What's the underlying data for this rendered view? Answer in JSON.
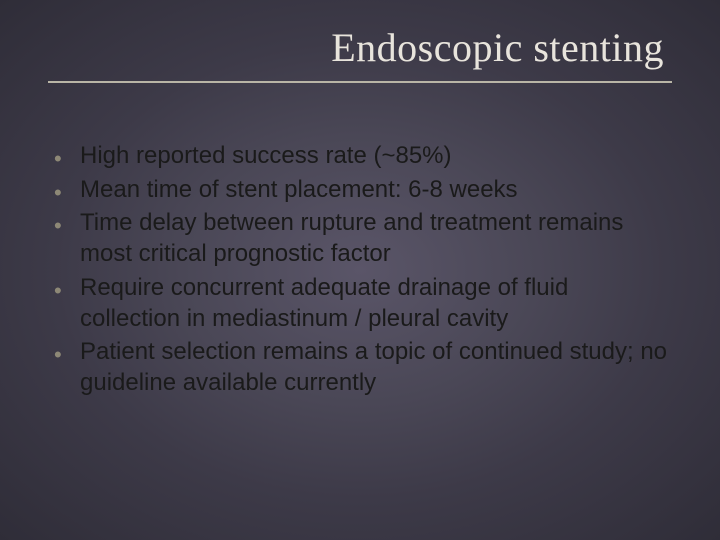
{
  "slide": {
    "title": "Endoscopic stenting",
    "title_color": "#e8e4dc",
    "title_fontsize": 40,
    "title_fontfamily": "Georgia, 'Times New Roman', serif",
    "rule_color": "#b9b5a6",
    "background_gradient": {
      "center": "#5a5568",
      "mid": "#4a4756",
      "outer": "#2f2d38"
    },
    "bullet_color": "#8d8876",
    "bullet_glyph": "•",
    "bullet_fontsize": 22,
    "body_text_color": "#1a1a1a",
    "body_fontsize": 24,
    "items": [
      "High reported success rate (~85%)",
      "Mean time of stent placement: 6-8 weeks",
      "Time delay between rupture and treatment remains most critical prognostic factor",
      "Require concurrent adequate drainage of fluid collection in mediastinum / pleural cavity",
      "Patient selection remains a topic of continued study; no guideline available currently"
    ]
  }
}
